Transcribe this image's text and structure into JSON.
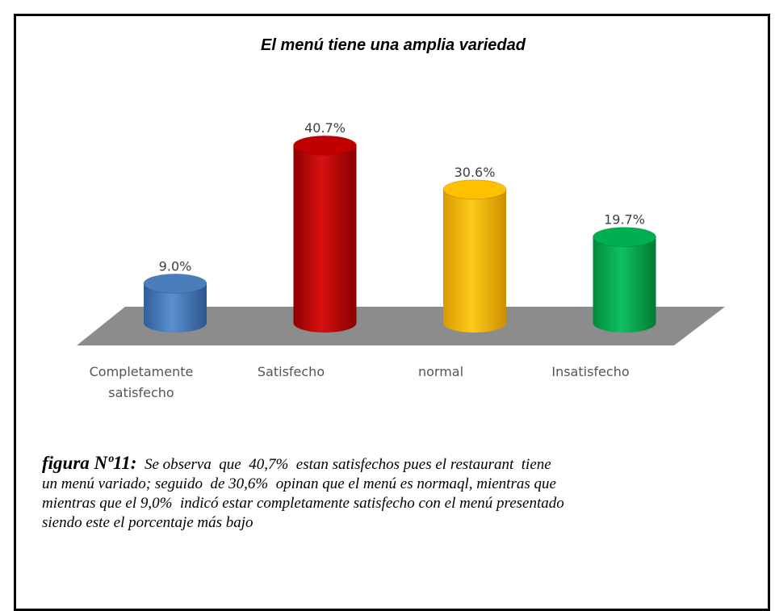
{
  "chart_data": {
    "type": "bar3d",
    "title": "El menú tiene una amplia variedad",
    "categories": [
      "Completamente satisfecho",
      "Satisfecho",
      "normal",
      "Insatisfecho"
    ],
    "values": [
      9.0,
      40.7,
      30.6,
      19.7
    ],
    "value_labels": [
      "9.0%",
      "40.7%",
      "30.6%",
      "19.7%"
    ],
    "colors": [
      "#4a7ebb",
      "#c00000",
      "#ffc000",
      "#00b050"
    ],
    "caption": {
      "label": "figura Nº11:",
      "lines": [
        "Se observa  que  40,7%  estan satisfechos pues el restaurant  tiene",
        "un menú variado; seguido  de 30,6%  opinan que el menú es normaql, mientras que",
        "mientras que el 9,0%  indicó estar completamente satisfecho con el menú presentado",
        "siendo este el porcentaje más bajo"
      ]
    }
  }
}
